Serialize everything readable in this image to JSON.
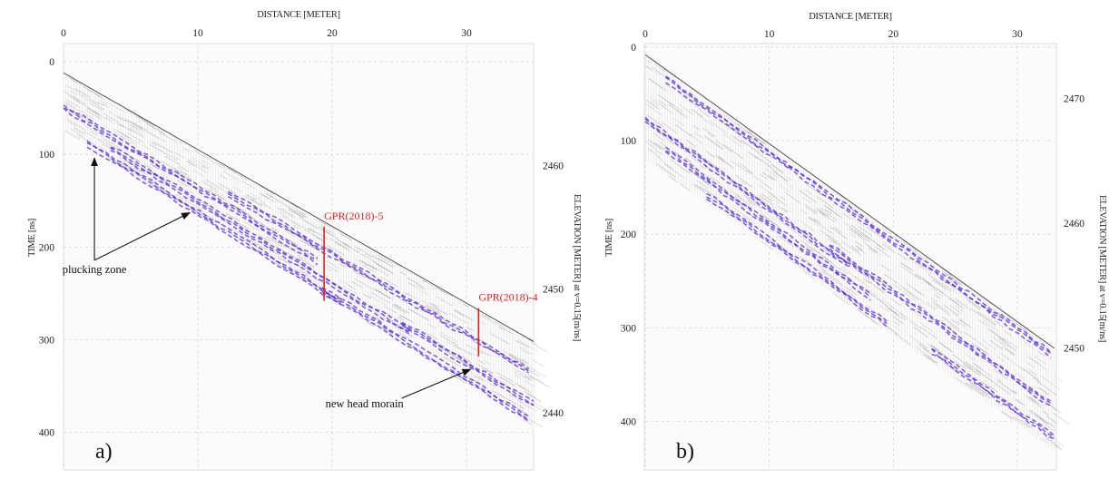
{
  "chart_data": [
    {
      "type": "radargram",
      "panel_label": "a)",
      "title": "DISTANCE [METER]",
      "xlabel": "DISTANCE [METER]",
      "ylabel": "TIME [ns]",
      "y2label": "ELEVATION [METER] at v=0.15[m/ns]",
      "xlim": [
        0,
        35
      ],
      "ylim": [
        0,
        420
      ],
      "y2lim": [
        2468.4,
        2436.9
      ],
      "xticks": [
        "0",
        "10",
        "20",
        "30"
      ],
      "yticks": [
        "0",
        "100",
        "200",
        "300",
        "400"
      ],
      "y2ticks": [
        "2460",
        "2450",
        "2440"
      ],
      "surface_line": {
        "x": [
          0,
          35
        ],
        "y": [
          12,
          302
        ]
      },
      "bottom_line": {
        "x": [
          0,
          35
        ],
        "y": [
          75,
          395
        ]
      },
      "annotations": [
        {
          "text": "plucking zone",
          "text_x": 2.3,
          "text_y": 228,
          "arrows_to": [
            {
              "x": 2.3,
              "y": 104
            },
            {
              "x": 9.4,
              "y": 163
            }
          ]
        },
        {
          "text": "new head morain",
          "text_x": 19.5,
          "text_y": 373,
          "arrows_to": [
            {
              "x": 30.3,
              "y": 332
            }
          ]
        }
      ],
      "markers": [
        {
          "label": "GPR(2018)-5",
          "x": 19.4,
          "y_top": 178,
          "y_bottom": 258
        },
        {
          "label": "GPR(2018)-4",
          "x": 30.9,
          "y_top": 266,
          "y_bottom": 318
        }
      ],
      "grid": true,
      "colors": {
        "reflection": "#5b2bd6",
        "trace": "#9a9a9a",
        "marker": "#e02020"
      }
    },
    {
      "type": "radargram",
      "panel_label": "b)",
      "title": "DISTANCE [METER]",
      "xlabel": "DISTANCE [METER]",
      "ylabel": "TIME [ns]",
      "y2label": "ELEVATION [METER] at v=0.15[m/ns]",
      "xlim": [
        0,
        33
      ],
      "ylim": [
        0,
        450
      ],
      "y2lim": [
        2474.1,
        2440.35
      ],
      "xticks": [
        "0",
        "10",
        "20",
        "30"
      ],
      "yticks": [
        "0",
        "100",
        "200",
        "300",
        "400"
      ],
      "y2ticks": [
        "2470",
        "2460",
        "2450"
      ],
      "surface_line": {
        "x": [
          0,
          33
        ],
        "y": [
          8,
          322
        ]
      },
      "bottom_line": {
        "x": [
          0,
          33
        ],
        "y": [
          120,
          432
        ]
      },
      "grid": true,
      "colors": {
        "reflection": "#5b2bd6",
        "trace": "#9a9a9a"
      }
    }
  ]
}
